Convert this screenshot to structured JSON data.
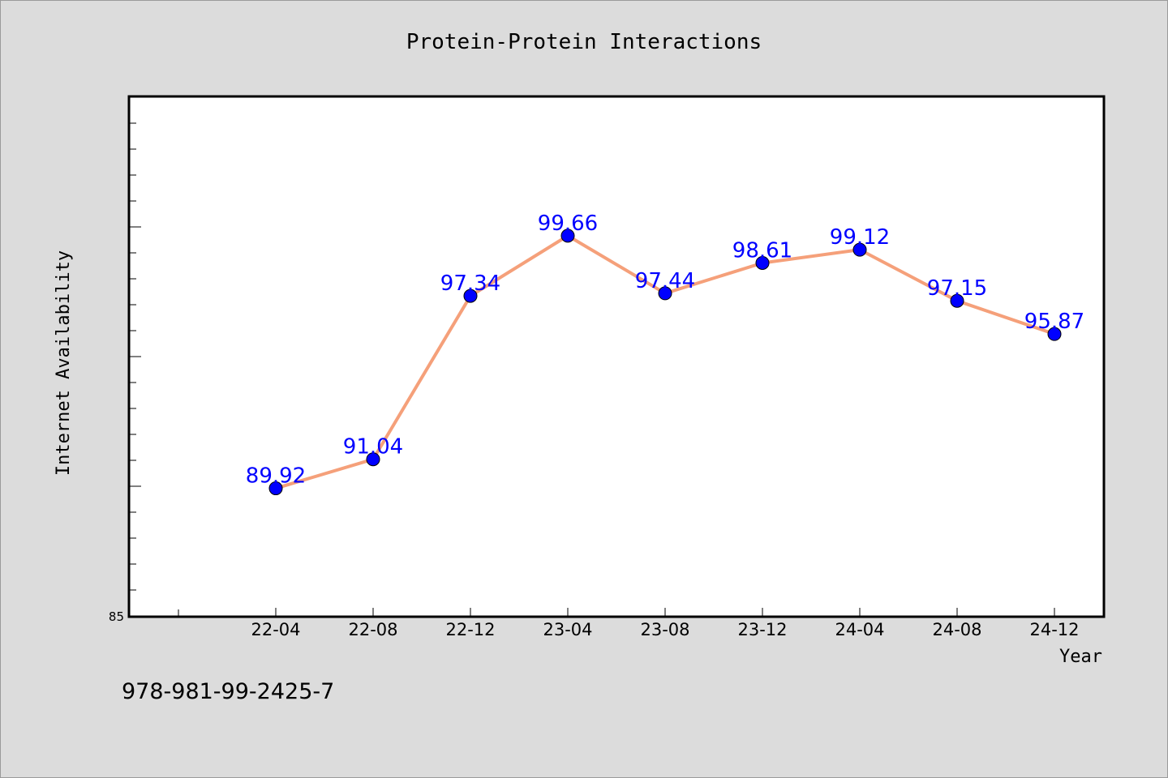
{
  "isbn_text": "978-981-99-2425-7",
  "chart_data": {
    "type": "line",
    "title": "Protein-Protein Interactions",
    "xlabel": "Year",
    "ylabel": "Internet Availability",
    "categories": [
      "22-04",
      "22-08",
      "22-12",
      "23-04",
      "23-08",
      "23-12",
      "24-04",
      "24-08",
      "24-12"
    ],
    "series": [
      {
        "values": [
          89.92,
          91.04,
          97.34,
          99.66,
          97.44,
          98.61,
          99.12,
          97.15,
          95.87
        ]
      }
    ],
    "ylim": [
      85,
      105
    ],
    "y_tick_labels": [
      "85"
    ],
    "line_color": "#f5a07a",
    "marker_color": "#0000ff",
    "label_color": "#0000ff",
    "grid": false,
    "legend": "none"
  }
}
